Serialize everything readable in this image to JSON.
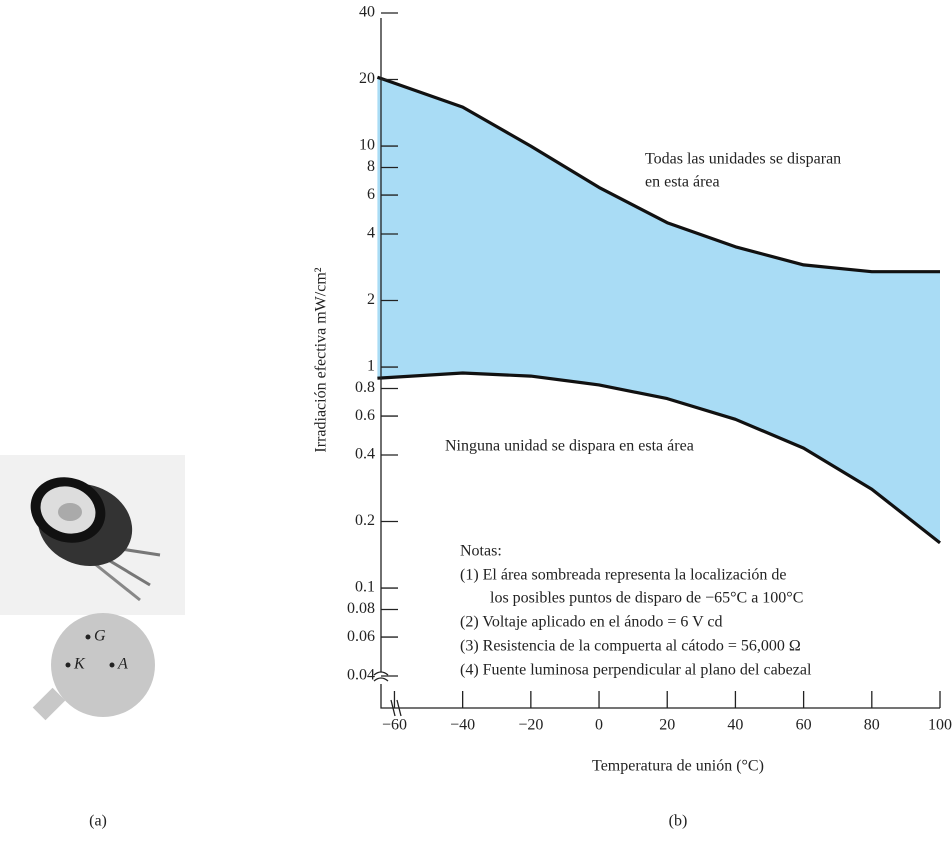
{
  "chart_data": {
    "type": "area",
    "x_label": "Temperatura de unión (°C)",
    "y_label": "Irradiación efectiva mW/cm²",
    "log_y": true,
    "grid": false,
    "fill_color": "#a9dcf5",
    "x": [
      -65,
      -40,
      -20,
      0,
      20,
      40,
      60,
      80,
      100
    ],
    "series": [
      {
        "color": "#111111",
        "values": [
          20.5,
          15,
          10,
          6.5,
          4.5,
          3.5,
          2.9,
          2.7,
          2.7
        ]
      },
      {
        "color": "#111111",
        "values": [
          0.89,
          0.94,
          0.91,
          0.83,
          0.72,
          0.58,
          0.43,
          0.28,
          0.16
        ]
      }
    ],
    "xlim": [
      -66,
      100
    ],
    "xticks": [
      {
        "value": -60,
        "label": "−60"
      },
      {
        "value": -40,
        "label": "−40"
      },
      {
        "value": -20,
        "label": "−20"
      },
      0,
      20,
      40,
      60,
      80,
      100
    ],
    "ylim": [
      0.04,
      40
    ],
    "yticks": [
      0.04,
      0.06,
      0.08,
      0.1,
      0.2,
      0.4,
      0.6,
      0.8,
      1,
      2,
      4,
      6,
      8,
      10,
      20,
      40
    ],
    "annotations": [
      "Todas las unidades se disparan",
      "en esta área",
      "Ninguna unidad se dispara en esta área"
    ],
    "notes": [
      "Notas:",
      "(1)  El área sombreada representa la localización de",
      "los posibles puntos de disparo de −65°C a 100°C",
      "(2)  Voltaje aplicado en el ánodo = 6 V cd",
      "(3)  Resistencia de la compuerta al cátodo = 56,000 Ω",
      "(4)  Fuente luminosa perpendicular al plano del cabezal"
    ],
    "caption": "(b)"
  },
  "figure_a": {
    "pins": [
      "G",
      "K",
      "A"
    ],
    "caption": "(a)"
  }
}
